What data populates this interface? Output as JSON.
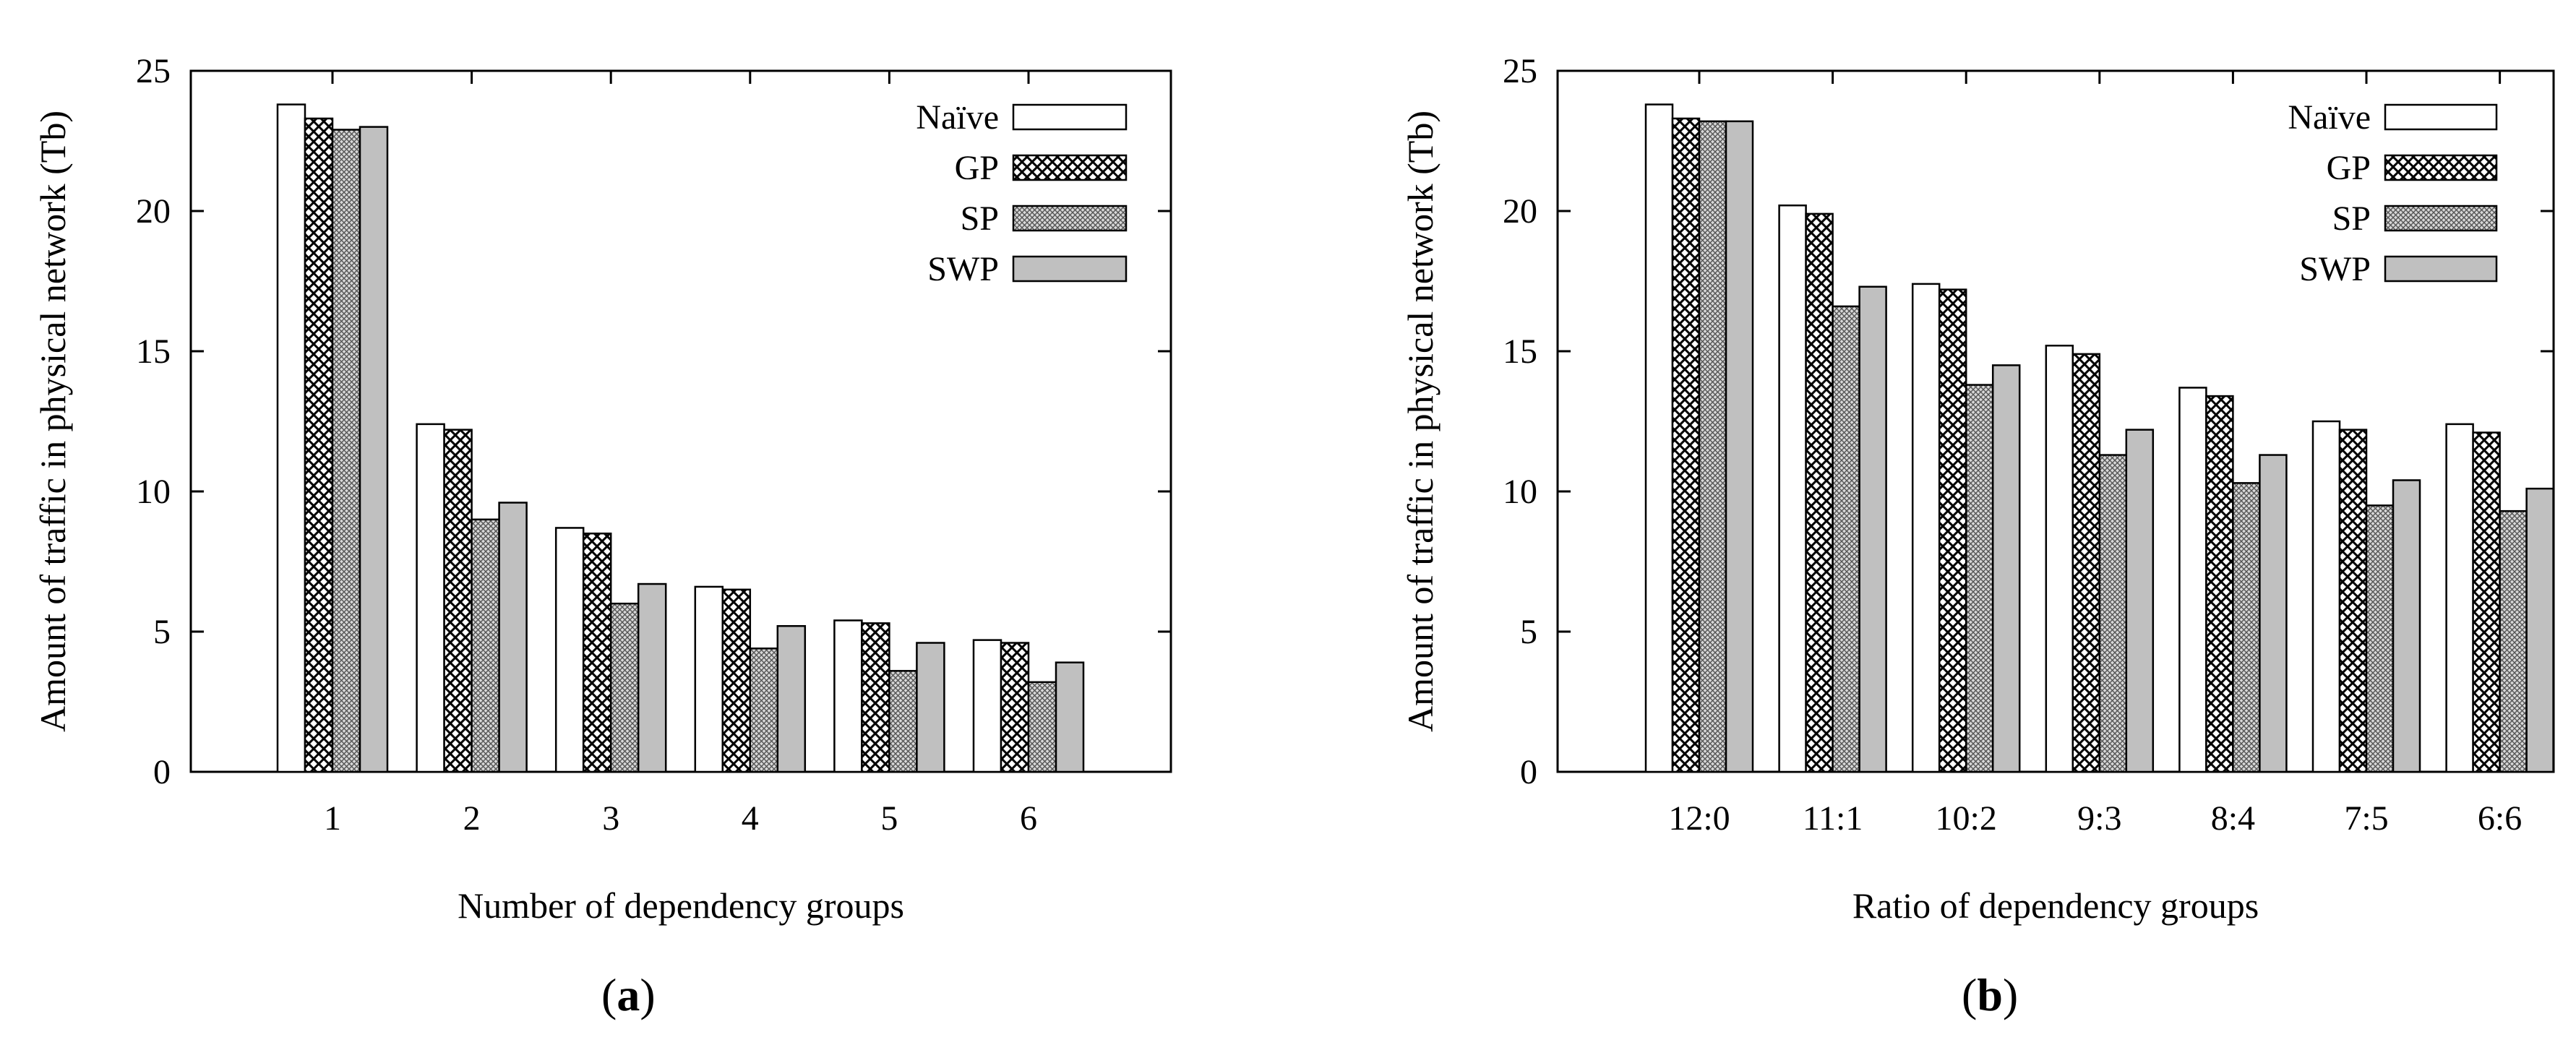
{
  "colors": {
    "naive_fill": "#ffffff",
    "sp_base": "#c8c8c8",
    "swp_fill": "#c0c0c0",
    "stroke": "#000000"
  },
  "chart_data": [
    {
      "id": "a",
      "type": "bar",
      "panel_label": "a",
      "xlabel": "Number of dependency groups",
      "ylabel": "Amount of traffic in physical network (Tb)",
      "ylim": [
        0,
        25
      ],
      "yticks": [
        0,
        5,
        10,
        15,
        20,
        25
      ],
      "categories": [
        "1",
        "2",
        "3",
        "4",
        "5",
        "6"
      ],
      "legend_position": "top-right",
      "series": [
        {
          "name": "Naïve",
          "pattern": "plain",
          "values": [
            23.8,
            12.4,
            8.7,
            6.6,
            5.4,
            4.7
          ]
        },
        {
          "name": "GP",
          "pattern": "crosshatch",
          "values": [
            23.3,
            12.2,
            8.5,
            6.5,
            5.3,
            4.6
          ]
        },
        {
          "name": "SP",
          "pattern": "fine",
          "values": [
            22.9,
            9.0,
            6.0,
            4.4,
            3.6,
            3.2
          ]
        },
        {
          "name": "SWP",
          "pattern": "gray",
          "values": [
            23.0,
            9.6,
            6.7,
            5.2,
            4.6,
            3.9
          ]
        }
      ]
    },
    {
      "id": "b",
      "type": "bar",
      "panel_label": "b",
      "xlabel": "Ratio of dependency groups",
      "ylabel": "Amount of traffic in physical network (Tb)",
      "ylim": [
        0,
        25
      ],
      "yticks": [
        0,
        5,
        10,
        15,
        20,
        25
      ],
      "categories": [
        "12:0",
        "11:1",
        "10:2",
        "9:3",
        "8:4",
        "7:5",
        "6:6"
      ],
      "legend_position": "top-right",
      "series": [
        {
          "name": "Naïve",
          "pattern": "plain",
          "values": [
            23.8,
            20.2,
            17.4,
            15.2,
            13.7,
            12.5,
            12.4
          ]
        },
        {
          "name": "GP",
          "pattern": "crosshatch",
          "values": [
            23.3,
            19.9,
            17.2,
            14.9,
            13.4,
            12.2,
            12.1
          ]
        },
        {
          "name": "SP",
          "pattern": "fine",
          "values": [
            23.2,
            16.6,
            13.8,
            11.3,
            10.3,
            9.5,
            9.3
          ]
        },
        {
          "name": "SWP",
          "pattern": "gray",
          "values": [
            23.2,
            17.3,
            14.5,
            12.2,
            11.3,
            10.4,
            10.1
          ]
        }
      ]
    }
  ]
}
